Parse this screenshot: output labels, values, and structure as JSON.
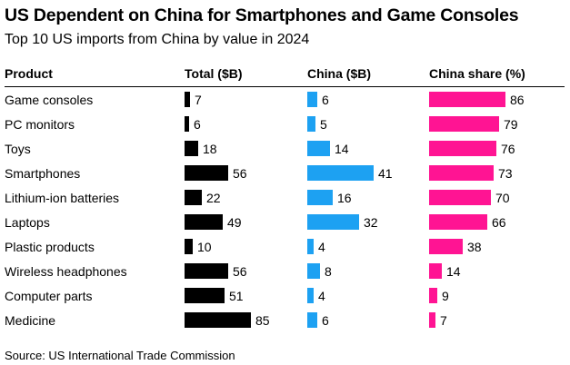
{
  "chart_data": {
    "type": "table",
    "title": "US Dependent on China for Smartphones and Game Consoles",
    "subtitle": "Top 10 US imports from China by value in 2024",
    "columns": [
      "Product",
      "Total ($B)",
      "China ($B)",
      "China share (%)"
    ],
    "categories": [
      "Game consoles",
      "PC monitors",
      "Toys",
      "Smartphones",
      "Lithium-ion batteries",
      "Laptops",
      "Plastic products",
      "Wireless headphones",
      "Computer parts",
      "Medicine"
    ],
    "series": [
      {
        "name": "Total ($B)",
        "color": "#000000",
        "max": 85,
        "values": [
          7,
          6,
          18,
          56,
          22,
          49,
          10,
          56,
          51,
          85
        ]
      },
      {
        "name": "China ($B)",
        "color": "#1da1f2",
        "max": 41,
        "values": [
          6,
          5,
          14,
          41,
          16,
          32,
          4,
          8,
          4,
          6
        ]
      },
      {
        "name": "China share (%)",
        "color": "#ff1493",
        "max": 86,
        "values": [
          86,
          79,
          76,
          73,
          70,
          66,
          38,
          14,
          9,
          7
        ]
      }
    ],
    "source": "Source: US International Trade Commission"
  }
}
